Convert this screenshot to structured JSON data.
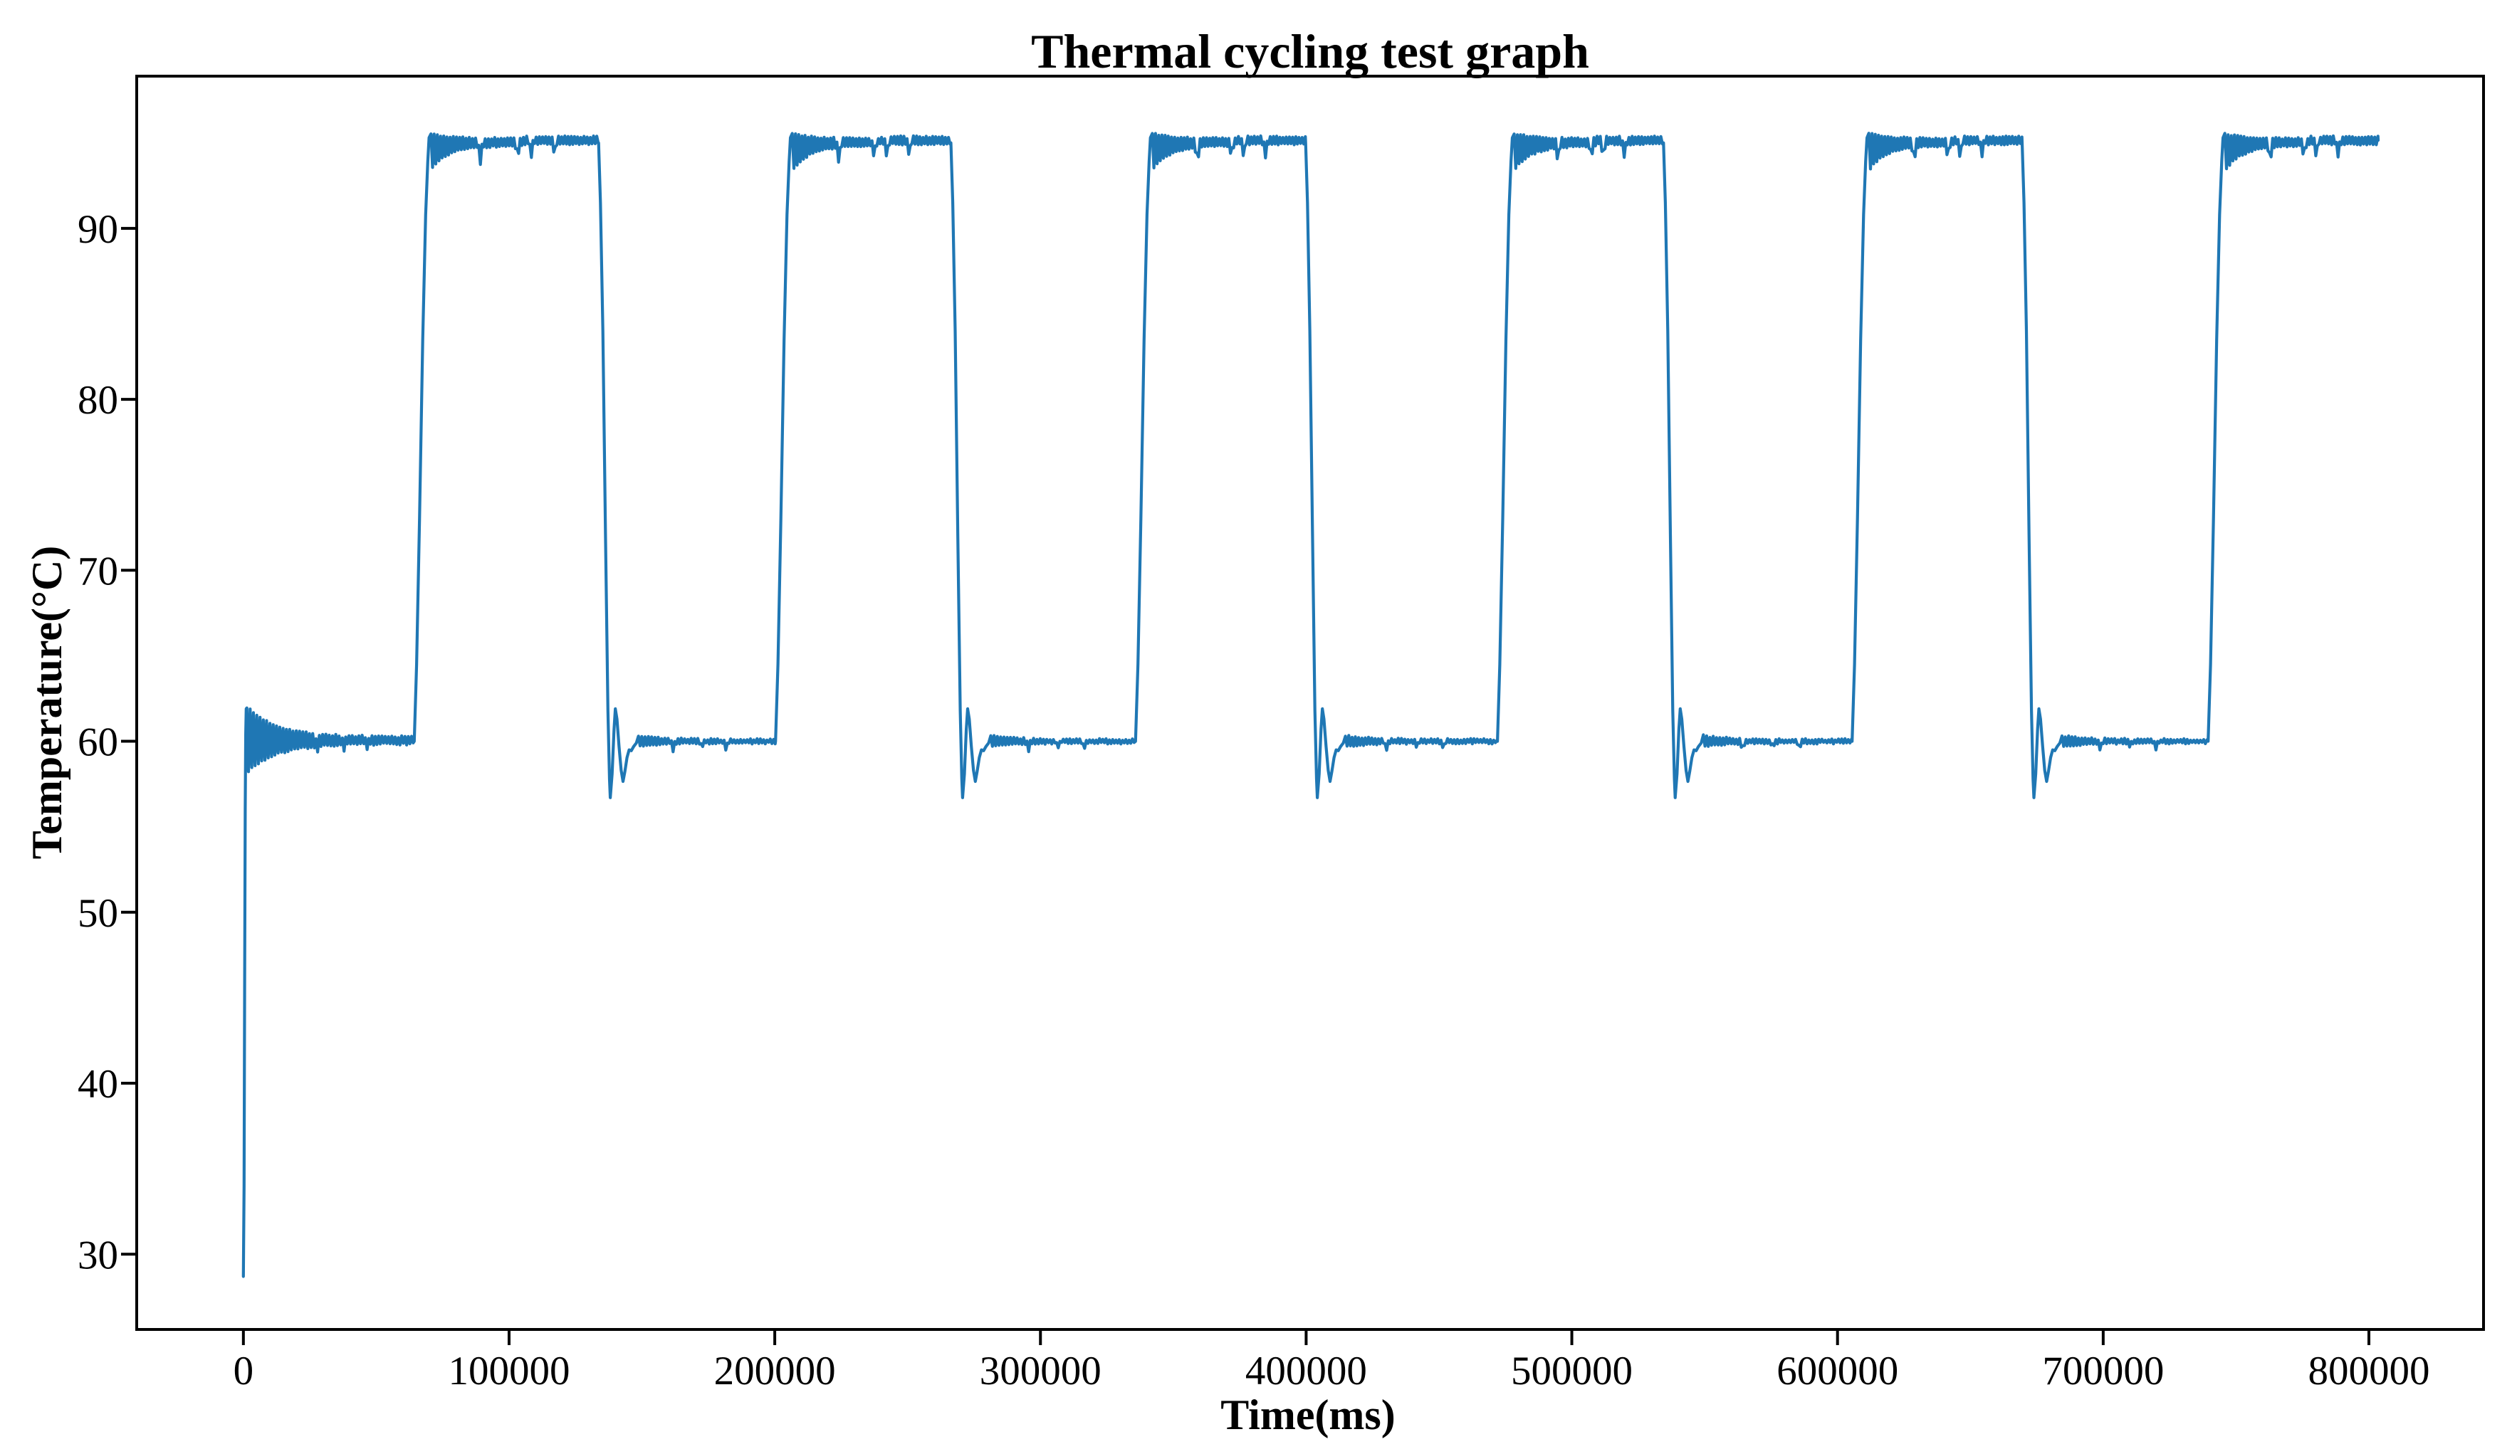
{
  "chart_data": {
    "type": "line",
    "title": "Thermal cycling test graph",
    "xlabel": "Time(ms)",
    "ylabel": "Temperature(°C)",
    "x_ticks": [
      0,
      100000,
      200000,
      300000,
      400000,
      500000,
      600000,
      700000,
      800000
    ],
    "y_ticks": [
      30,
      40,
      50,
      60,
      70,
      80,
      90
    ],
    "xlim": [
      -40150,
      843150
    ],
    "ylim": [
      25.6,
      98.9
    ],
    "grid": false,
    "legend": "none",
    "line_color": "#1f77b4",
    "axis_color": "#000000",
    "background_color": "#ffffff",
    "waveform": {
      "description": "thermal cycling square wave between soak temperatures",
      "t_end_ms": 803500,
      "start_temp": 28.7,
      "low_level": 60,
      "high_level": 95,
      "rise_duration_ms": 5800,
      "fall_duration_ms": 4400,
      "startup_osc": {
        "peak": 61.9,
        "trough": 58.3,
        "settle_ms": 38000,
        "period_ms": 1240
      },
      "post_fall": {
        "undershoot": 56.7,
        "rebound_peak": 61.9,
        "second_dip": 57.65,
        "settle_ms": 15000
      },
      "high_plateau": {
        "overshoot_tip": 95.3,
        "initial_band_low": 93.4,
        "initial_settle_ms": 20000,
        "steady_band": [
          94.85,
          95.3
        ],
        "late_band": [
          95.0,
          95.4
        ]
      },
      "low_band": [
        59.8,
        60.2
      ],
      "high_dips": [
        [
          0.3,
          1.0
        ],
        [
          0.52,
          0.75
        ],
        [
          0.6,
          0.9
        ],
        [
          0.74,
          0.8
        ]
      ],
      "low_dips": [
        [
          0.42,
          0.55
        ],
        [
          0.58,
          0.4
        ],
        [
          0.72,
          0.5
        ]
      ],
      "cycles": [
        {
          "rise_start_ms": 64300,
          "fall_start_ms": 133700
        },
        {
          "rise_start_ms": 200300,
          "fall_start_ms": 266300
        },
        {
          "rise_start_ms": 335800,
          "fall_start_ms": 399800
        },
        {
          "rise_start_ms": 472000,
          "fall_start_ms": 534500
        },
        {
          "rise_start_ms": 605500,
          "fall_start_ms": 669500
        },
        {
          "rise_start_ms": 739500,
          "fall_start_ms": null
        }
      ],
      "noise_seed": 7
    }
  }
}
